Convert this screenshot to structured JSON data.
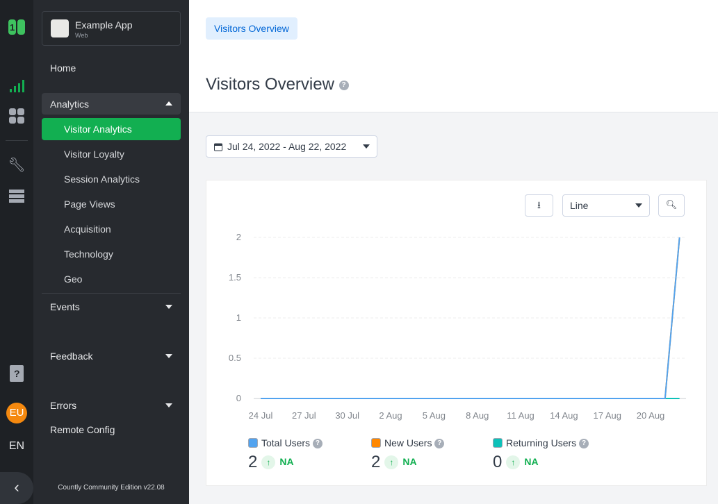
{
  "app": {
    "name": "Example App",
    "type": "Web"
  },
  "rail": {
    "items": [
      "logo-icon",
      "analytics-icon",
      "dashboard-icon",
      "wrench-icon",
      "data-manager-icon",
      "help-icon"
    ],
    "avatar": "EU",
    "language": "EN"
  },
  "sidebar": {
    "home": "Home",
    "analytics": "Analytics",
    "sub_items": [
      "Visitor Analytics",
      "Visitor Loyalty",
      "Session Analytics",
      "Page Views",
      "Acquisition",
      "Technology",
      "Geo"
    ],
    "events": "Events",
    "feedback": "Feedback",
    "errors": "Errors",
    "remote_config": "Remote Config",
    "footer": "Countly Community Edition v22.08"
  },
  "header": {
    "breadcrumb": "Visitors Overview",
    "title": "Visitors Overview",
    "help": "?"
  },
  "date_range": "Jul 24, 2022 - Aug 22, 2022",
  "chart_toolbar": {
    "type_select": "Line"
  },
  "legend": [
    {
      "label": "Total Users",
      "value": "2",
      "trend": "NA",
      "color": "#52a3ef"
    },
    {
      "label": "New Users",
      "value": "2",
      "trend": "NA",
      "color": "#ff8700"
    },
    {
      "label": "Returning Users",
      "value": "0",
      "trend": "NA",
      "color": "#0ec1b9"
    }
  ],
  "chart_data": {
    "type": "line",
    "x": [
      "24 Jul",
      "25 Jul",
      "26 Jul",
      "27 Jul",
      "28 Jul",
      "29 Jul",
      "30 Jul",
      "31 Jul",
      "1 Aug",
      "2 Aug",
      "3 Aug",
      "4 Aug",
      "5 Aug",
      "6 Aug",
      "7 Aug",
      "8 Aug",
      "9 Aug",
      "10 Aug",
      "11 Aug",
      "12 Aug",
      "13 Aug",
      "14 Aug",
      "15 Aug",
      "16 Aug",
      "17 Aug",
      "18 Aug",
      "19 Aug",
      "20 Aug",
      "21 Aug",
      "22 Aug"
    ],
    "x_ticks": [
      "24 Jul",
      "27 Jul",
      "30 Jul",
      "2 Aug",
      "5 Aug",
      "8 Aug",
      "11 Aug",
      "14 Aug",
      "17 Aug",
      "20 Aug"
    ],
    "y_ticks": [
      "0",
      "0.5",
      "1",
      "1.5",
      "2"
    ],
    "ylim": [
      0,
      2
    ],
    "grid": true,
    "series": [
      {
        "name": "Total Users",
        "color": "#52a3ef",
        "values": [
          0,
          0,
          0,
          0,
          0,
          0,
          0,
          0,
          0,
          0,
          0,
          0,
          0,
          0,
          0,
          0,
          0,
          0,
          0,
          0,
          0,
          0,
          0,
          0,
          0,
          0,
          0,
          0,
          0,
          2
        ]
      },
      {
        "name": "New Users",
        "color": "#ff8700",
        "values": [
          0,
          0,
          0,
          0,
          0,
          0,
          0,
          0,
          0,
          0,
          0,
          0,
          0,
          0,
          0,
          0,
          0,
          0,
          0,
          0,
          0,
          0,
          0,
          0,
          0,
          0,
          0,
          0,
          0,
          2
        ]
      },
      {
        "name": "Returning Users",
        "color": "#0ec1b9",
        "values": [
          0,
          0,
          0,
          0,
          0,
          0,
          0,
          0,
          0,
          0,
          0,
          0,
          0,
          0,
          0,
          0,
          0,
          0,
          0,
          0,
          0,
          0,
          0,
          0,
          0,
          0,
          0,
          0,
          0,
          0
        ]
      }
    ]
  }
}
